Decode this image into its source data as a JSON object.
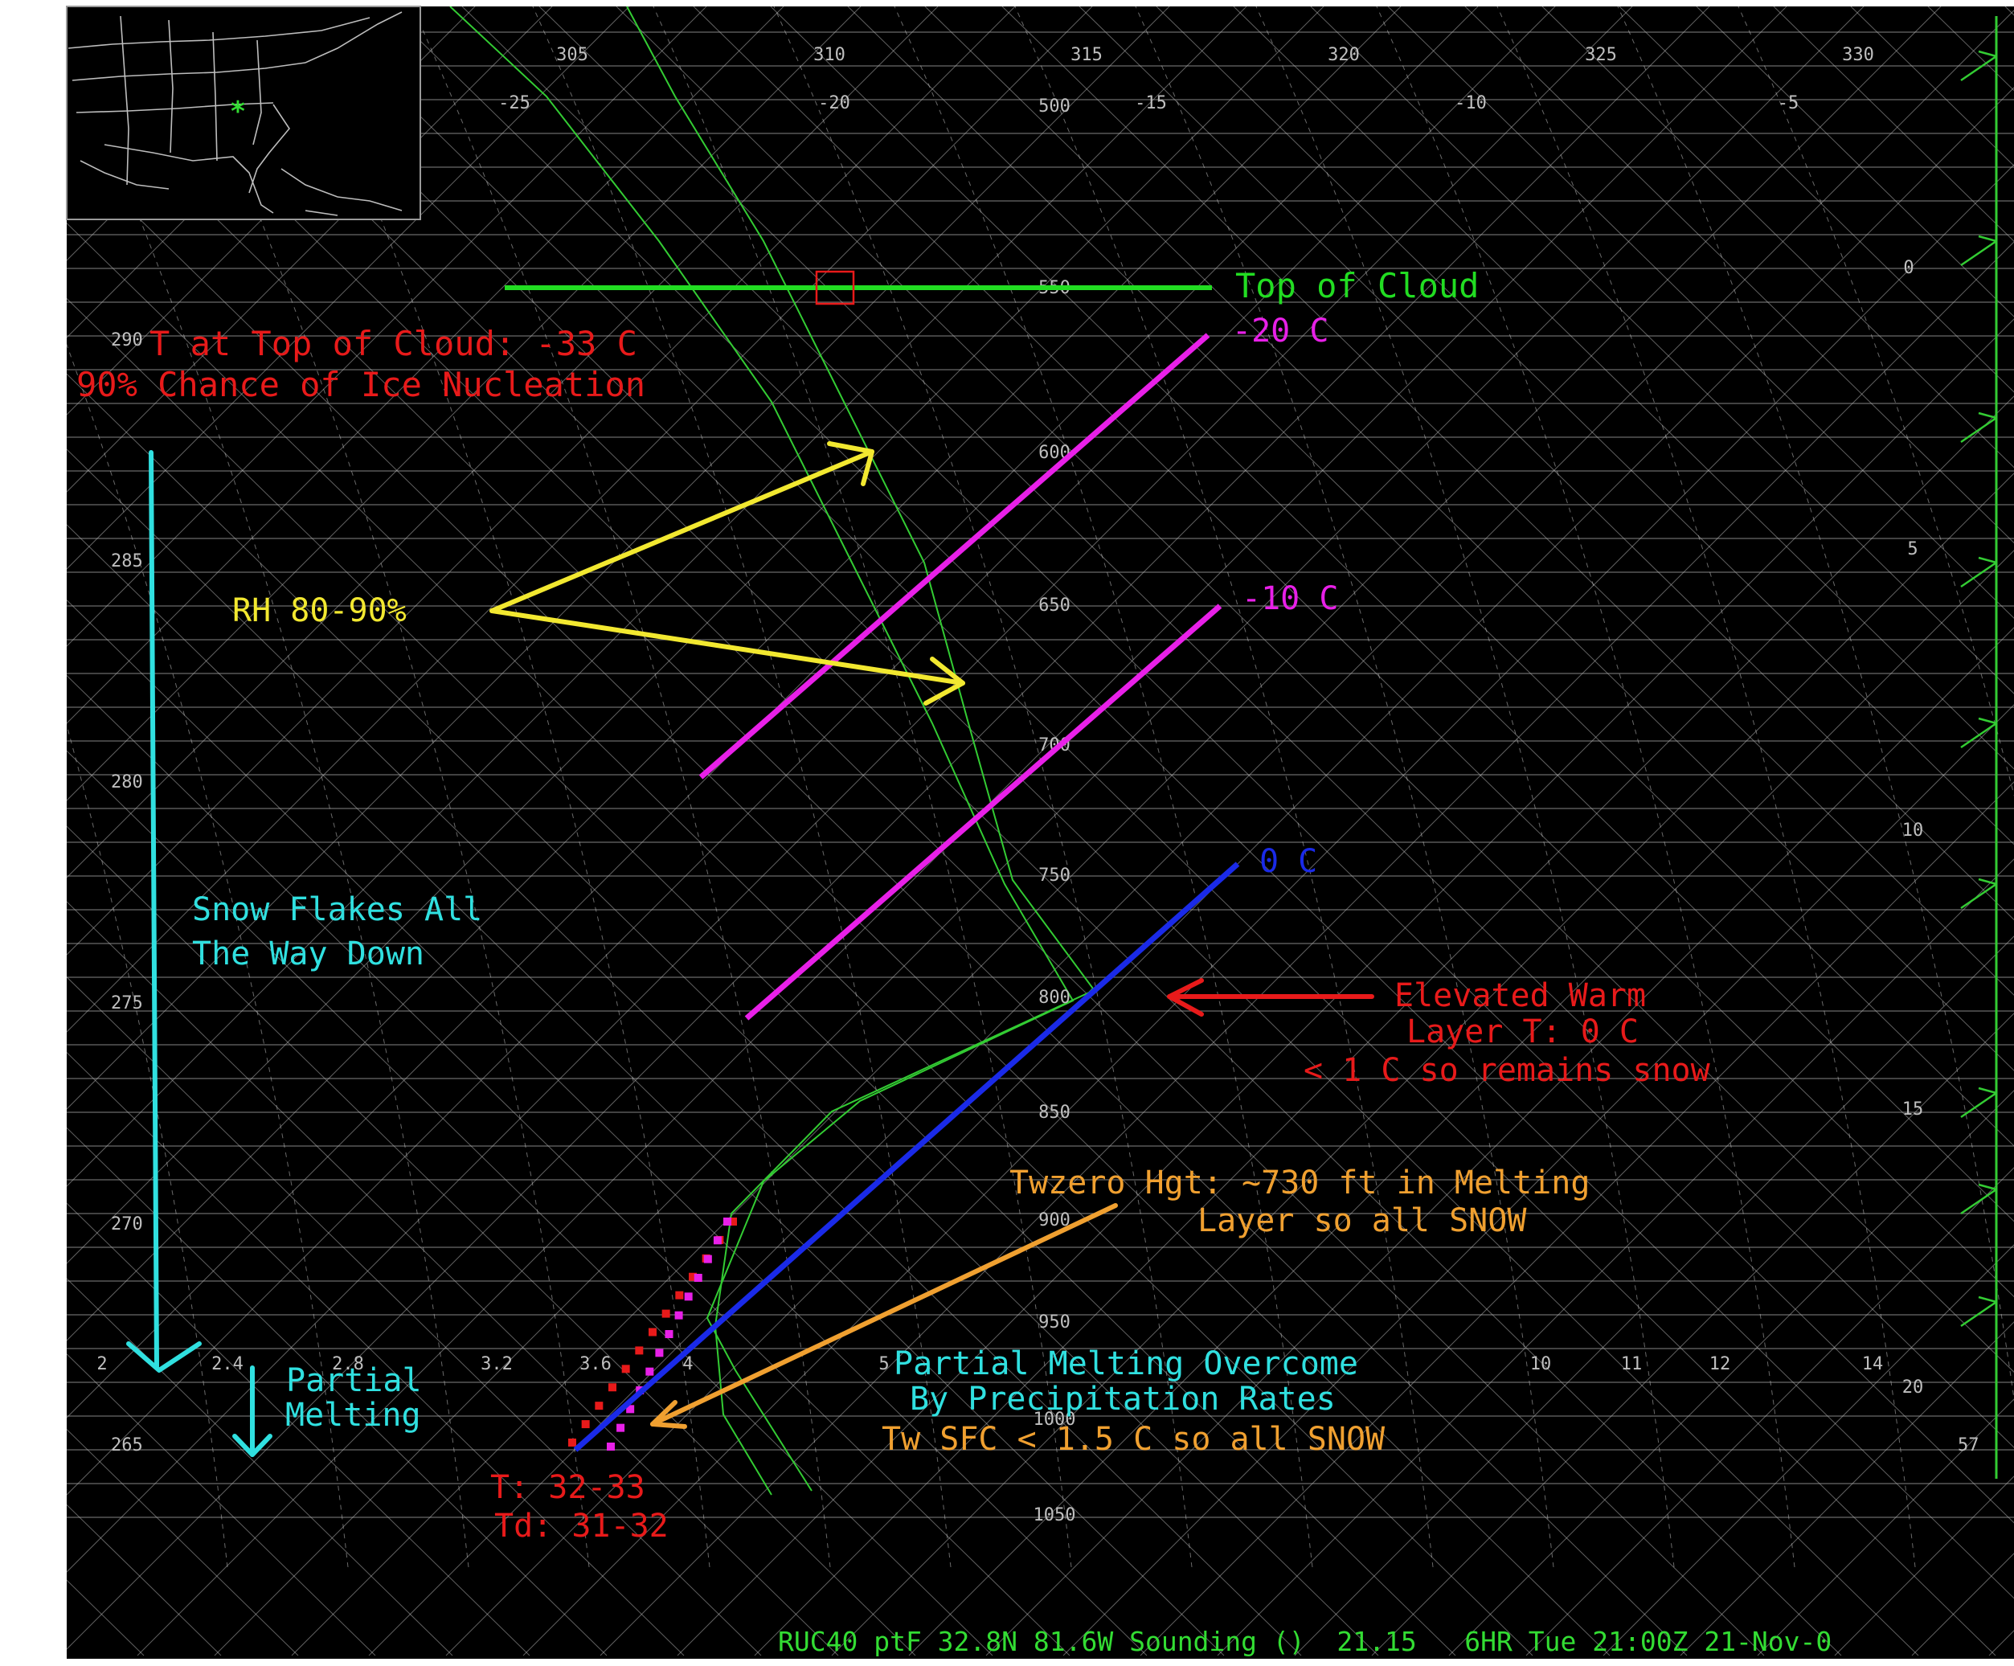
{
  "chart_data": {
    "type": "skew-t sounding",
    "footer": "RUC40 ptF 32.8N 81.6W Sounding ()  21.15   6HR Tue 21:00Z 21-Nov-0",
    "pressure_labels": [
      "500",
      "550",
      "600",
      "650",
      "700",
      "750",
      "800",
      "850",
      "900",
      "950",
      "1000",
      "1050"
    ],
    "temperature_labels": [
      "-25",
      "-20",
      "-15",
      "-10",
      "-5",
      "0",
      "5",
      "10",
      "15",
      "20"
    ],
    "theta_labels": [
      "305",
      "310",
      "315",
      "320",
      "325",
      "330"
    ],
    "left_theta_labels": [
      "290",
      "285",
      "280",
      "275",
      "270",
      "265"
    ],
    "mixing_ratio_labels": [
      "2",
      "2.4",
      "2.8",
      "3.2",
      "3.6",
      "4",
      "5",
      "10",
      "11",
      "12",
      "14"
    ],
    "wind_speed_label": "57",
    "annotations": {
      "top_of_cloud": "Top of Cloud",
      "t_top_cloud": "T at Top of Cloud: -33 C",
      "ice_nucleation": "90% Chance of Ice Nucleation",
      "minus20": "-20 C",
      "minus10": "-10 C",
      "zero": "0 C",
      "rh": "RH 80-90%",
      "snow_line1": "Snow Flakes All",
      "snow_line2": "The Way Down",
      "warm_line1": "Elevated Warm",
      "warm_line2": "Layer T: 0 C",
      "warm_line3": "< 1 C so remains snow",
      "twzero_line1": "Twzero Hgt: ~730 ft in Melting",
      "twzero_line2": "Layer so all SNOW",
      "partial_line1": "Partial",
      "partial_line2": "Melting",
      "overcome_line1": "Partial Melting Overcome",
      "overcome_line2": "By Precipitation Rates",
      "overcome_line3": "Tw SFC < 1.5 C so all SNOW",
      "t_range": "T: 32-33",
      "td_range": "Td: 31-32"
    },
    "colors": {
      "background": "#000000",
      "grid": "#bfbfbf",
      "sounding": "#33cc33",
      "top_cloud": "#22dd22",
      "annotation_red": "#e81a1a",
      "isotherm_magenta": "#e820e8",
      "isotherm_zero": "#1a2ae8",
      "rh_yellow": "#f2e830",
      "snow_cyan": "#30e0e0",
      "twzero_orange": "#f0a030",
      "footer_green": "#33dd33"
    }
  }
}
